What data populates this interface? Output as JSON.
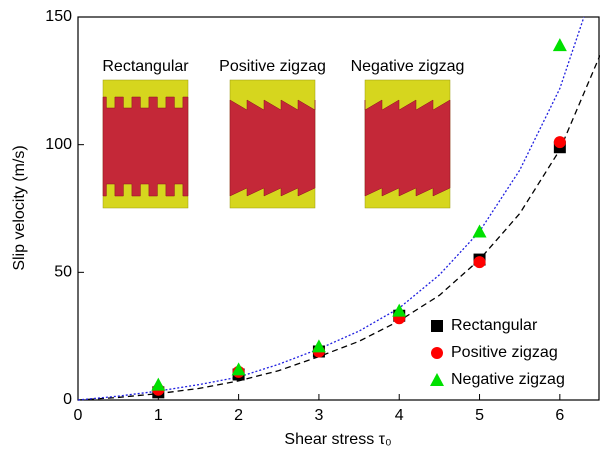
{
  "chart_data": {
    "type": "scatter",
    "xlabel": "Shear stress τ₀",
    "ylabel": "Slip velocity (m/s)",
    "x": [
      1,
      2,
      3,
      4,
      5,
      6
    ],
    "series": [
      {
        "name": "Rectangular",
        "color": "#000000",
        "marker": "square",
        "values": [
          3,
          10,
          19,
          33,
          55,
          99
        ]
      },
      {
        "name": "Positive zigzag",
        "color": "#ff0000",
        "marker": "circle",
        "values": [
          4,
          11,
          19,
          32,
          54,
          101
        ]
      },
      {
        "name": "Negative zigzag",
        "color": "#00e000",
        "marker": "triangle",
        "values": [
          6,
          12,
          21,
          35,
          66,
          139
        ]
      }
    ],
    "fits": [
      {
        "color": "#000000",
        "dash": "dashed",
        "x": [
          0,
          0.5,
          1,
          1.5,
          2,
          2.5,
          3,
          3.5,
          4,
          4.5,
          5,
          5.5,
          6,
          6.5
        ],
        "values": [
          0,
          1,
          2.5,
          4.5,
          7.5,
          11.5,
          17,
          23,
          31,
          41,
          55,
          73,
          98,
          135
        ]
      },
      {
        "color": "#2020e0",
        "dash": "dotted",
        "x": [
          0,
          0.5,
          1,
          1.5,
          2,
          2.5,
          3,
          3.5,
          4,
          4.5,
          5,
          5.5,
          6,
          6.3
        ],
        "values": [
          0,
          1.5,
          3.5,
          6,
          9,
          14,
          20,
          27,
          36,
          49,
          66,
          90,
          122,
          150
        ]
      }
    ],
    "insets": [
      {
        "label": "Rectangular",
        "shape": "rectangular"
      },
      {
        "label": "Positive zigzag",
        "shape": "positive"
      },
      {
        "label": "Negative zigzag",
        "shape": "negative"
      }
    ],
    "xlim": [
      0,
      6.5
    ],
    "xticks": [
      0,
      1,
      2,
      3,
      4,
      5,
      6
    ],
    "ylim": [
      0,
      150
    ],
    "yticks": [
      0,
      50,
      100,
      150
    ],
    "legend": "lower right"
  }
}
